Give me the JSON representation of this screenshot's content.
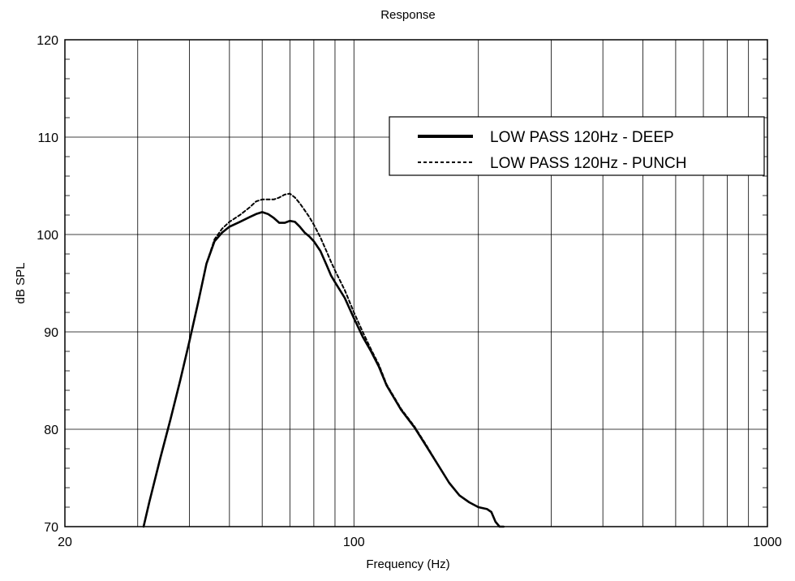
{
  "chart_data": {
    "type": "line",
    "title": "Response",
    "xlabel": "Frequency (Hz)",
    "ylabel": "dB SPL",
    "x_scale": "log",
    "xlim": [
      20,
      1000
    ],
    "ylim": [
      70,
      120
    ],
    "x_tick_labels": [
      "20",
      "100",
      "1000"
    ],
    "y_tick_labels": [
      "70",
      "80",
      "90",
      "100",
      "110",
      "120"
    ],
    "grid": true,
    "legend_position": "top-right",
    "series": [
      {
        "name": "LOW PASS 120Hz - DEEP",
        "style": "solid-thick",
        "color": "#000000",
        "x": [
          31,
          32,
          34,
          36,
          38,
          40,
          42,
          44,
          46,
          48,
          50,
          53,
          56,
          58,
          60,
          62,
          64,
          66,
          68,
          70,
          72,
          74,
          76,
          78,
          80,
          83,
          86,
          88,
          90,
          95,
          100,
          105,
          110,
          115,
          120,
          130,
          140,
          150,
          160,
          170,
          180,
          190,
          200,
          210,
          215,
          220,
          225,
          230
        ],
        "y": [
          70,
          72.5,
          77,
          81,
          85,
          89,
          93,
          97,
          99.3,
          100.2,
          100.8,
          101.3,
          101.8,
          102.1,
          102.3,
          102.1,
          101.7,
          101.2,
          101.2,
          101.4,
          101.3,
          100.8,
          100.2,
          99.8,
          99.3,
          98.3,
          96.8,
          95.8,
          95.1,
          93.5,
          91.4,
          89.5,
          88.0,
          86.4,
          84.5,
          82.0,
          80.2,
          78.2,
          76.3,
          74.5,
          73.2,
          72.5,
          72.0,
          71.8,
          71.5,
          70.5,
          70.0,
          70.0
        ]
      },
      {
        "name": "LOW PASS 120Hz - PUNCH",
        "style": "dashed",
        "color": "#000000",
        "x": [
          31,
          32,
          34,
          36,
          38,
          40,
          42,
          44,
          46,
          48,
          50,
          53,
          56,
          58,
          60,
          62,
          64,
          66,
          68,
          70,
          72,
          74,
          76,
          78,
          80,
          83,
          86,
          88,
          90,
          95,
          100,
          105,
          110,
          115,
          120,
          130,
          140,
          150,
          160
        ],
        "y": [
          70,
          72.5,
          77,
          81,
          85,
          89,
          93,
          97,
          99.5,
          100.6,
          101.3,
          102.0,
          102.8,
          103.4,
          103.6,
          103.6,
          103.6,
          103.8,
          104.1,
          104.2,
          103.8,
          103.2,
          102.5,
          101.8,
          101.0,
          99.7,
          98.2,
          97.2,
          96.3,
          94.3,
          92.0,
          90.0,
          88.2,
          86.6,
          84.6,
          82.1,
          80.3,
          78.3,
          76.3
        ]
      }
    ]
  }
}
